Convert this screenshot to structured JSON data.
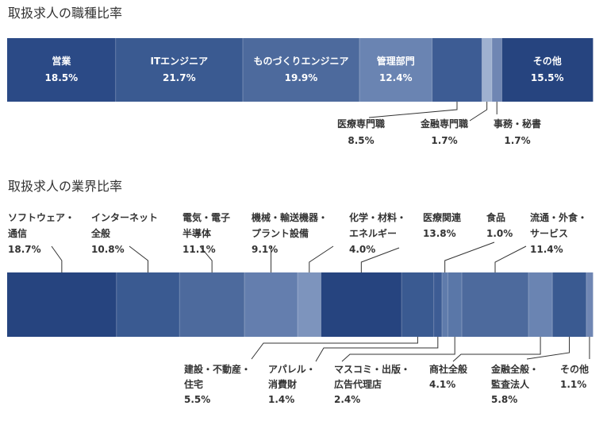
{
  "chart_data": [
    {
      "type": "stacked-bar-100",
      "title": "取扱求人の職種比率",
      "unit": "%",
      "segments": [
        {
          "label": "営業",
          "value": 18.5,
          "value_text": "18.5%",
          "color": "#2b4a86",
          "callout": false
        },
        {
          "label": "ITエンジニア",
          "value": 21.7,
          "value_text": "21.7%",
          "color": "#3a5a91",
          "callout": false
        },
        {
          "label": "ものづくりエンジニア",
          "value": 19.9,
          "value_text": "19.9%",
          "color": "#4d6a9d",
          "callout": false
        },
        {
          "label": "管理部門",
          "value": 12.4,
          "value_text": "12.4%",
          "color": "#6a84b2",
          "callout": false
        },
        {
          "label": "医療専門職",
          "value": 8.5,
          "value_text": "8.5%",
          "color": "#3d5c94",
          "callout": true
        },
        {
          "label": "金融専門職",
          "value": 1.7,
          "value_text": "1.7%",
          "color": "#9fb1d0",
          "callout": true
        },
        {
          "label": "事務・秘書",
          "value": 1.7,
          "value_text": "1.7%",
          "color": "#6f86b3",
          "callout": true
        },
        {
          "label": "その他",
          "value": 15.5,
          "value_text": "15.5%",
          "color": "#26447f",
          "callout": false
        }
      ]
    },
    {
      "type": "stacked-bar-100",
      "title": "取扱求人の業界比率",
      "unit": "%",
      "segments": [
        {
          "label": [
            "ソフトウェア・",
            "通信"
          ],
          "value": 18.7,
          "value_text": "18.7%",
          "color": "#26447f",
          "pos": "top"
        },
        {
          "label": [
            "インターネット",
            "全般"
          ],
          "value": 10.8,
          "value_text": "10.8%",
          "color": "#3a5a91",
          "pos": "top"
        },
        {
          "label": [
            "電気・電子",
            "半導体"
          ],
          "value": 11.1,
          "value_text": "11.1%",
          "color": "#4d6a9d",
          "pos": "top"
        },
        {
          "label": [
            "機械・輸送機器・",
            "プラント設備"
          ],
          "value": 9.1,
          "value_text": "9.1%",
          "color": "#647eae",
          "pos": "top"
        },
        {
          "label": [
            "化学・材料・",
            "エネルギー"
          ],
          "value": 4.0,
          "value_text": "4.0%",
          "color": "#7d94bd",
          "pos": "top"
        },
        {
          "label": [
            "医療関連"
          ],
          "value": 13.8,
          "value_text": "13.8%",
          "color": "#26447f",
          "pos": "top"
        },
        {
          "label": [
            "建設・不動産・",
            "住宅"
          ],
          "value": 5.5,
          "value_text": "5.5%",
          "color": "#3a5a91",
          "pos": "bottom"
        },
        {
          "label": [
            "アパレル・",
            "消費財"
          ],
          "value": 1.4,
          "value_text": "1.4%",
          "color": "#3d5c94",
          "pos": "bottom"
        },
        {
          "label": [
            "食品"
          ],
          "value": 1.0,
          "value_text": "1.0%",
          "color": "#5f7bab",
          "pos": "top"
        },
        {
          "label": [
            "マスコミ・出版・",
            "広告代理店"
          ],
          "value": 2.4,
          "value_text": "2.4%",
          "color": "#5a77a8",
          "pos": "bottom"
        },
        {
          "label": [
            "流通・外食・",
            "サービス"
          ],
          "value": 11.4,
          "value_text": "11.4%",
          "color": "#4d6a9d",
          "pos": "top"
        },
        {
          "label": [
            "商社全般"
          ],
          "value": 4.1,
          "value_text": "4.1%",
          "color": "#6a84b2",
          "pos": "bottom"
        },
        {
          "label": [
            "金融全般・",
            "監査法人"
          ],
          "value": 5.8,
          "value_text": "5.8%",
          "color": "#3a5a91",
          "pos": "bottom"
        },
        {
          "label": [
            "その他"
          ],
          "value": 1.1,
          "value_text": "1.1%",
          "color": "#6f86b3",
          "pos": "bottom"
        }
      ]
    }
  ]
}
